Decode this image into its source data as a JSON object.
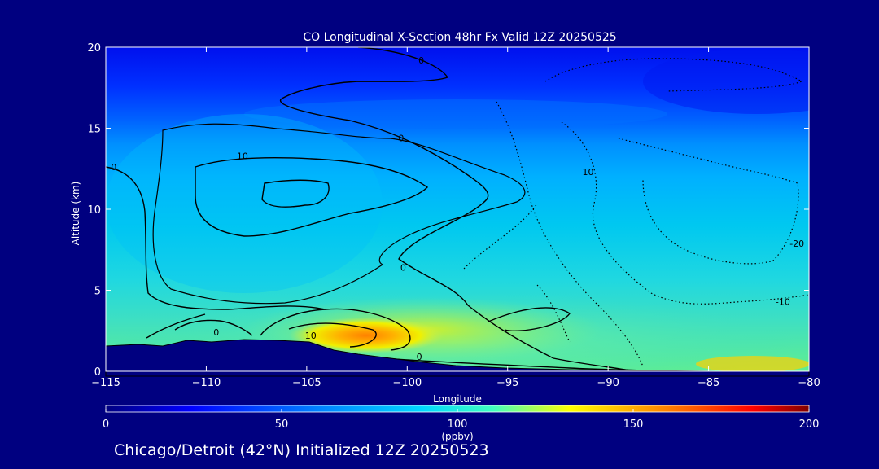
{
  "chart_data": {
    "type": "heatmap",
    "title": "CO Longitudinal X-Section 48hr  Fx Valid 12Z 20250525",
    "xlabel": "Longitude",
    "ylabel": "Altitude (km)",
    "xlim": [
      -115,
      -80
    ],
    "ylim": [
      0,
      20
    ],
    "xticks": [
      -115,
      -110,
      -105,
      -100,
      -95,
      -90,
      -85,
      -80
    ],
    "yticks": [
      0,
      5,
      10,
      15,
      20
    ],
    "colorbar": {
      "label": "(ppbv)",
      "range": [
        0,
        200
      ],
      "ticks": [
        0,
        50,
        100,
        150,
        200
      ],
      "colors": [
        "#000080",
        "#0000ff",
        "#0080ff",
        "#00d8ff",
        "#40ffc0",
        "#ffff00",
        "#ff8000",
        "#ff0000",
        "#800000"
      ]
    },
    "field_description": {
      "longitudes": [
        -115,
        -110,
        -105,
        -100,
        -95,
        -90,
        -85,
        -80
      ],
      "altitudes_km": [
        0.5,
        2,
        4,
        6,
        8,
        10,
        12,
        14,
        16,
        18,
        20
      ],
      "co_ppbv": [
        [
          120,
          125,
          135,
          130,
          110,
          95,
          90,
          90
        ],
        [
          105,
          110,
          120,
          130,
          110,
          90,
          88,
          88
        ],
        [
          95,
          92,
          95,
          100,
          95,
          88,
          86,
          85
        ],
        [
          88,
          82,
          85,
          88,
          88,
          84,
          84,
          82
        ],
        [
          82,
          78,
          80,
          82,
          82,
          82,
          80,
          78
        ],
        [
          80,
          78,
          78,
          80,
          80,
          78,
          72,
          70
        ],
        [
          78,
          76,
          76,
          76,
          74,
          70,
          62,
          60
        ],
        [
          70,
          66,
          66,
          64,
          60,
          55,
          50,
          46
        ],
        [
          50,
          46,
          45,
          42,
          40,
          38,
          36,
          34
        ],
        [
          38,
          36,
          34,
          32,
          30,
          30,
          30,
          30
        ],
        [
          35,
          33,
          32,
          30,
          28,
          28,
          28,
          28
        ]
      ]
    },
    "contour_labels": [
      {
        "text": "0",
        "lon": -99.3,
        "alt": 19.0
      },
      {
        "text": "0",
        "lon": -100.3,
        "alt": 14.2
      },
      {
        "text": "10",
        "lon": -108.2,
        "alt": 13.1
      },
      {
        "text": "10",
        "lon": -91.0,
        "alt": 12.1
      },
      {
        "text": "0",
        "lon": -114.6,
        "alt": 12.4
      },
      {
        "text": "0",
        "lon": -100.2,
        "alt": 6.2
      },
      {
        "text": "-20",
        "lon": -80.6,
        "alt": 7.7
      },
      {
        "text": "-10",
        "lon": -81.3,
        "alt": 4.1
      },
      {
        "text": "0",
        "lon": -109.5,
        "alt": 2.2
      },
      {
        "text": "10",
        "lon": -104.8,
        "alt": 2.0
      },
      {
        "text": "0",
        "lon": -99.4,
        "alt": 0.7
      }
    ]
  },
  "footer": {
    "text": "Chicago/Detroit (42°N) Initialized 12Z 20250523"
  }
}
